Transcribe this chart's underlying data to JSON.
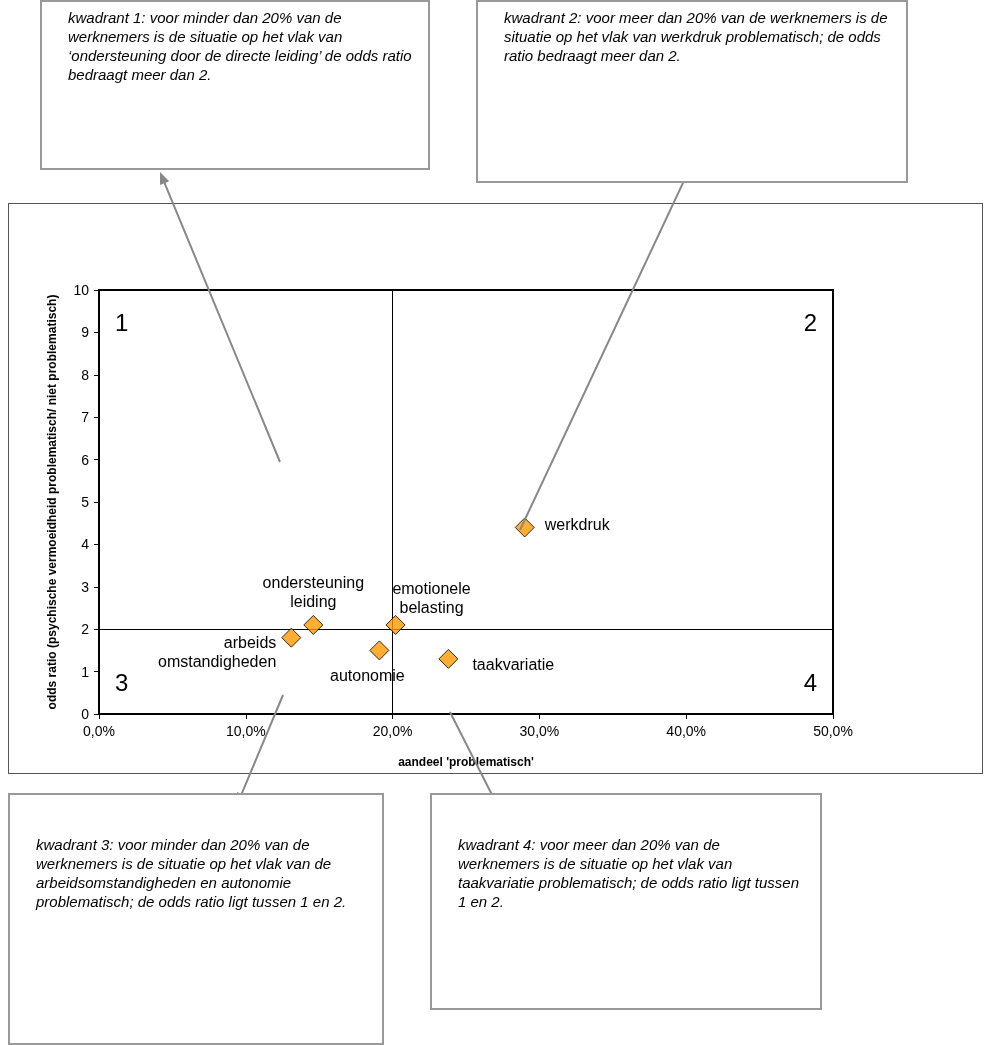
{
  "chart_data": {
    "type": "scatter",
    "xlabel": "aandeel 'problematisch'",
    "ylabel": "odds ratio (psychische vermoeidheid problematisch/ niet problematisch)",
    "x": [
      13.1,
      14.6,
      19.1,
      20.2,
      23.8,
      29.0
    ],
    "series": [
      {
        "color": "#ff9900",
        "values": [
          1.8,
          2.1,
          1.5,
          2.1,
          1.3,
          4.4
        ]
      }
    ],
    "marker": "diamond",
    "grid": false,
    "xlim": [
      0,
      50
    ],
    "xticks": [
      {
        "value": 0,
        "label": "0,0%"
      },
      {
        "value": 10,
        "label": "10,0%"
      },
      {
        "value": 20,
        "label": "20,0%"
      },
      {
        "value": 30,
        "label": "30,0%"
      },
      {
        "value": 40,
        "label": "40,0%"
      },
      {
        "value": 50,
        "label": "50,0%"
      }
    ],
    "ylim": [
      0,
      10
    ],
    "yticks": [
      0,
      1,
      2,
      3,
      4,
      5,
      6,
      7,
      8,
      9,
      10
    ],
    "ref_lines": [
      {
        "axis": "x",
        "value": 20,
        "color": "#000000"
      },
      {
        "axis": "y",
        "value": 2,
        "color": "#000000"
      }
    ],
    "annotations": [
      {
        "text": "arbeids\nomstandigheden",
        "x": 13.1,
        "y": 1.8
      },
      {
        "text": "ondersteuning\nleiding",
        "x": 14.6,
        "y": 2.1
      },
      {
        "text": "autonomie",
        "x": 19.1,
        "y": 1.5
      },
      {
        "text": "emotionele\nbelasting",
        "x": 20.2,
        "y": 2.1
      },
      {
        "text": "taakvariatie",
        "x": 23.8,
        "y": 1.3
      },
      {
        "text": "werkdruk",
        "x": 29.0,
        "y": 4.4
      },
      "1",
      "2",
      "3",
      "4",
      "kwadrant 1: voor minder dan 20% van de werknemers is de situatie op het vlak van ‘ondersteuning door de directe leiding’ de odds ratio bedraagt meer dan 2.",
      "kwadrant 2: voor meer dan 20% van de werknemers is de situatie op het vlak van werkdruk problematisch; de odds ratio bedraagt meer dan 2.",
      "kwadrant 3: voor minder dan 20% van de werknemers is de situatie op het vlak van de arbeidsomstandigheden en autonomie problematisch; de odds ratio ligt tussen 1 en 2.",
      "kwadrant 4: voor meer dan 20% van de werknemers is de situatie op het vlak van taakvariatie problematisch; de odds ratio ligt tussen 1 en 2."
    ]
  }
}
